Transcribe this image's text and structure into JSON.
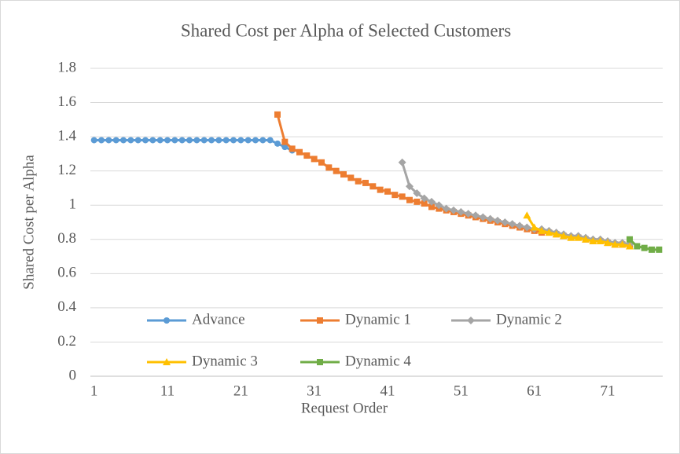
{
  "chart_data": {
    "type": "line",
    "title": "Shared Cost per Alpha of Selected Customers",
    "xlabel": "Request Order",
    "ylabel": "Shared Cost per Alpha",
    "x": [
      1,
      2,
      3,
      4,
      5,
      6,
      7,
      8,
      9,
      10,
      11,
      12,
      13,
      14,
      15,
      16,
      17,
      18,
      19,
      20,
      21,
      22,
      23,
      24,
      25,
      26,
      27,
      28,
      29,
      30,
      31,
      32,
      33,
      34,
      35,
      36,
      37,
      38,
      39,
      40,
      41,
      42,
      43,
      44,
      45,
      46,
      47,
      48,
      49,
      50,
      51,
      52,
      53,
      54,
      55,
      56,
      57,
      58,
      59,
      60,
      61,
      62,
      63,
      64,
      65,
      66,
      67,
      68,
      69,
      70,
      71,
      72,
      73,
      74,
      75,
      76,
      77,
      78
    ],
    "xlim": [
      0.5,
      78.5
    ],
    "xticks": [
      1,
      11,
      21,
      31,
      41,
      51,
      61,
      71
    ],
    "ylim": [
      0,
      1.8
    ],
    "yticks": [
      0,
      0.2,
      0.4,
      0.6,
      0.8,
      1,
      1.2,
      1.4,
      1.6,
      1.8
    ],
    "grid": true,
    "series": [
      {
        "name": "Advance",
        "color": "#5b9bd5",
        "marker": "circle",
        "values": [
          1.38,
          1.38,
          1.38,
          1.38,
          1.38,
          1.38,
          1.38,
          1.38,
          1.38,
          1.38,
          1.38,
          1.38,
          1.38,
          1.38,
          1.38,
          1.38,
          1.38,
          1.38,
          1.38,
          1.38,
          1.38,
          1.38,
          1.38,
          1.38,
          1.38,
          1.36,
          1.34,
          1.32,
          null,
          null,
          null,
          null,
          null,
          null,
          null,
          null,
          null,
          null,
          null,
          null,
          null,
          null,
          null,
          null,
          null,
          null,
          null,
          null,
          null,
          null,
          null,
          null,
          null,
          null,
          null,
          null,
          null,
          null,
          null,
          null,
          null,
          null,
          null,
          null,
          null,
          null,
          null,
          null,
          null,
          null,
          null,
          null,
          null,
          null,
          null,
          null,
          null,
          null
        ]
      },
      {
        "name": "Dynamic 1",
        "color": "#ed7d31",
        "marker": "square",
        "values": [
          null,
          null,
          null,
          null,
          null,
          null,
          null,
          null,
          null,
          null,
          null,
          null,
          null,
          null,
          null,
          null,
          null,
          null,
          null,
          null,
          null,
          null,
          null,
          null,
          null,
          1.53,
          1.37,
          1.33,
          1.31,
          1.29,
          1.27,
          1.25,
          1.22,
          1.2,
          1.18,
          1.16,
          1.14,
          1.13,
          1.11,
          1.09,
          1.08,
          1.06,
          1.05,
          1.03,
          1.02,
          1.01,
          0.99,
          0.98,
          0.97,
          0.96,
          0.95,
          0.94,
          0.93,
          0.92,
          0.91,
          0.9,
          0.89,
          0.88,
          0.87,
          0.86,
          0.85,
          0.84,
          0.84,
          0.83,
          0.82,
          0.81,
          0.81,
          0.8,
          0.79,
          0.79,
          0.78,
          0.77,
          0.77,
          0.76,
          null,
          null,
          null,
          null
        ]
      },
      {
        "name": "Dynamic 2",
        "color": "#a5a5a5",
        "marker": "diamond",
        "values": [
          null,
          null,
          null,
          null,
          null,
          null,
          null,
          null,
          null,
          null,
          null,
          null,
          null,
          null,
          null,
          null,
          null,
          null,
          null,
          null,
          null,
          null,
          null,
          null,
          null,
          null,
          null,
          null,
          null,
          null,
          null,
          null,
          null,
          null,
          null,
          null,
          null,
          null,
          null,
          null,
          null,
          null,
          1.25,
          1.11,
          1.07,
          1.04,
          1.02,
          1.0,
          0.98,
          0.97,
          0.96,
          0.95,
          0.94,
          0.93,
          0.92,
          0.91,
          0.9,
          0.89,
          0.88,
          0.87,
          0.86,
          0.86,
          0.85,
          0.84,
          0.83,
          0.82,
          0.82,
          0.81,
          0.8,
          0.8,
          0.79,
          0.78,
          0.78,
          0.77,
          null,
          null,
          null,
          null
        ]
      },
      {
        "name": "Dynamic 3",
        "color": "#ffc000",
        "marker": "triangle",
        "values": [
          null,
          null,
          null,
          null,
          null,
          null,
          null,
          null,
          null,
          null,
          null,
          null,
          null,
          null,
          null,
          null,
          null,
          null,
          null,
          null,
          null,
          null,
          null,
          null,
          null,
          null,
          null,
          null,
          null,
          null,
          null,
          null,
          null,
          null,
          null,
          null,
          null,
          null,
          null,
          null,
          null,
          null,
          null,
          null,
          null,
          null,
          null,
          null,
          null,
          null,
          null,
          null,
          null,
          null,
          null,
          null,
          null,
          null,
          null,
          0.94,
          0.87,
          0.85,
          0.84,
          0.83,
          0.82,
          0.81,
          0.81,
          0.8,
          0.79,
          0.79,
          0.78,
          0.77,
          0.77,
          0.76,
          null,
          null,
          null,
          null
        ]
      },
      {
        "name": "Dynamic 4",
        "color": "#70ad47",
        "marker": "square",
        "values": [
          null,
          null,
          null,
          null,
          null,
          null,
          null,
          null,
          null,
          null,
          null,
          null,
          null,
          null,
          null,
          null,
          null,
          null,
          null,
          null,
          null,
          null,
          null,
          null,
          null,
          null,
          null,
          null,
          null,
          null,
          null,
          null,
          null,
          null,
          null,
          null,
          null,
          null,
          null,
          null,
          null,
          null,
          null,
          null,
          null,
          null,
          null,
          null,
          null,
          null,
          null,
          null,
          null,
          null,
          null,
          null,
          null,
          null,
          null,
          null,
          null,
          null,
          null,
          null,
          null,
          null,
          null,
          null,
          null,
          null,
          null,
          null,
          null,
          0.8,
          0.76,
          0.75,
          0.74,
          0.74
        ]
      }
    ]
  }
}
